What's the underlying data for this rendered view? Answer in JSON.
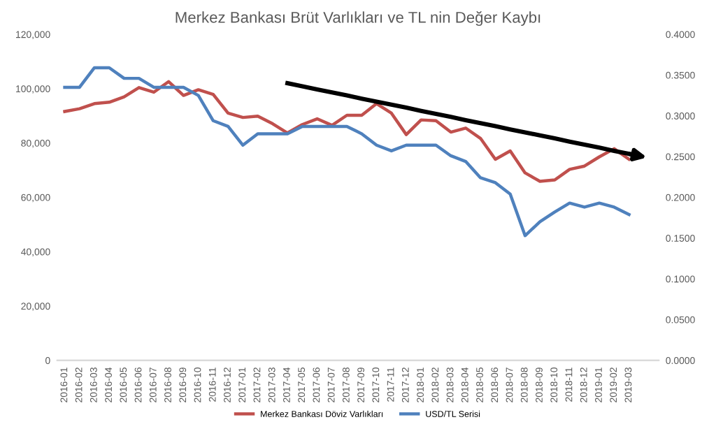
{
  "chart_data": {
    "type": "line",
    "title": "Merkez Bankası Brüt Varlıkları ve TL nin Değer Kaybı",
    "categories": [
      "2016-01",
      "2016-02",
      "2016-03",
      "2016-04",
      "2016-05",
      "2016-06",
      "2016-07",
      "2016-08",
      "2016-09",
      "2016-10",
      "2016-11",
      "2016-12",
      "2017-01",
      "2017-02",
      "2017-03",
      "2017-04",
      "2017-05",
      "2017-06",
      "2017-07",
      "2017-08",
      "2017-09",
      "2017-10",
      "2017-11",
      "2017-12",
      "2018-01",
      "2018-02",
      "2018-03",
      "2018-04",
      "2018-05",
      "2018-06",
      "2018-07",
      "2018-08",
      "2018-09",
      "2018-10",
      "2018-11",
      "2018-12",
      "2019-01",
      "2019-02",
      "2019-03"
    ],
    "series": [
      {
        "name": "Merkez Bankası Döviz Varlıkları",
        "color": "#c0504d",
        "values": [
          91600,
          92600,
          94500,
          95000,
          97000,
          100400,
          98700,
          102600,
          97500,
          99600,
          97900,
          91000,
          89400,
          89900,
          87100,
          83700,
          86800,
          88900,
          86500,
          90200,
          90200,
          94500,
          91000,
          83100,
          88500,
          88200,
          84000,
          85500,
          81700,
          74000,
          77100,
          69000,
          65900,
          66400,
          70300,
          71500,
          74900,
          77900,
          74000
        ]
      },
      {
        "name": "USD/TL Serisi",
        "color": "#4f81bd",
        "axis": "y2",
        "values": [
          0.335,
          0.335,
          0.359,
          0.359,
          0.346,
          0.346,
          0.335,
          0.335,
          0.335,
          0.325,
          0.294,
          0.287,
          0.264,
          0.278,
          0.278,
          0.278,
          0.287,
          0.287,
          0.287,
          0.287,
          0.278,
          0.264,
          0.257,
          0.264,
          0.264,
          0.264,
          0.251,
          0.244,
          0.224,
          0.218,
          0.204,
          0.153,
          0.17,
          0.182,
          0.193,
          0.188,
          0.193,
          0.188,
          0.179
        ]
      },
      {
        "type": "line",
        "color": "#000000",
        "values": [
          null,
          null,
          null,
          null,
          null,
          null,
          null,
          null,
          null,
          null,
          null,
          null,
          null,
          null,
          null,
          102000,
          100900,
          99700,
          98600,
          97500,
          96300,
          95200,
          94100,
          93000,
          91800,
          90700,
          89600,
          88400,
          87300,
          86200,
          85000,
          83900,
          82800,
          81700,
          80500,
          79400,
          78300,
          77100,
          76000
        ]
      }
    ],
    "ylim": [
      0,
      120000
    ],
    "yticks": [
      {
        "value": 0,
        "label": "0"
      },
      {
        "value": 20000,
        "label": "20,000"
      },
      {
        "value": 40000,
        "label": "40,000"
      },
      {
        "value": 60000,
        "label": "60,000"
      },
      {
        "value": 80000,
        "label": "80,000"
      },
      {
        "value": 100000,
        "label": "100,000"
      },
      {
        "value": 120000,
        "label": "120,000"
      }
    ],
    "y2lim": [
      0,
      0.4
    ],
    "y2ticks": [
      {
        "value": 0,
        "label": "0.0000"
      },
      {
        "value": 0.05,
        "label": "0.0500"
      },
      {
        "value": 0.1,
        "label": "0.1000"
      },
      {
        "value": 0.15,
        "label": "0.1500"
      },
      {
        "value": 0.2,
        "label": "0.2000"
      },
      {
        "value": 0.25,
        "label": "0.2500"
      },
      {
        "value": 0.3,
        "label": "0.3000"
      },
      {
        "value": 0.35,
        "label": "0.3500"
      },
      {
        "value": 0.4,
        "label": "0.4000"
      }
    ],
    "grid": false,
    "legend": "bottom"
  }
}
